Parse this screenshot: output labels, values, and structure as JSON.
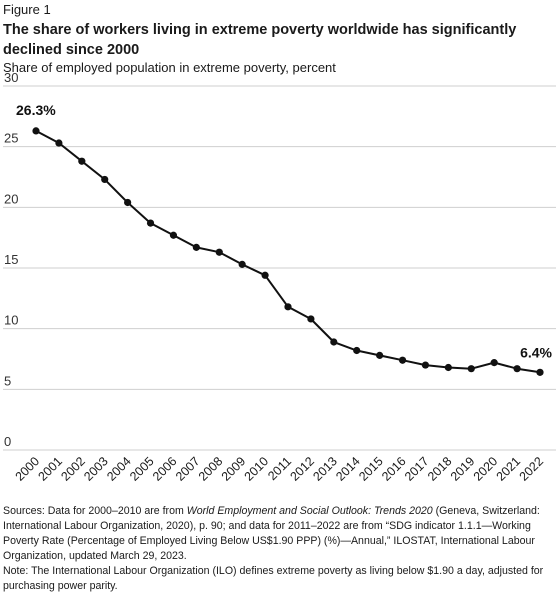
{
  "figure_label": "Figure 1",
  "title": "The share of workers living in extreme poverty worldwide has significantly declined since 2000",
  "subtitle": "Share of employed population in extreme poverty, percent",
  "chart_data": {
    "type": "line",
    "title": "The share of workers living in extreme poverty worldwide has significantly declined since 2000",
    "ylabel": "Share of employed population in extreme poverty, percent",
    "xlabel": "",
    "ylim": [
      0,
      30
    ],
    "y_ticks": [
      0,
      5,
      10,
      15,
      20,
      25,
      30
    ],
    "x": [
      "2000",
      "2001",
      "2002",
      "2003",
      "2004",
      "2005",
      "2006",
      "2007",
      "2008",
      "2009",
      "2010",
      "2011",
      "2012",
      "2013",
      "2014",
      "2015",
      "2016",
      "2017",
      "2018",
      "2019",
      "2020",
      "2021",
      "2022"
    ],
    "series": [
      {
        "values": [
          26.3,
          25.3,
          23.8,
          22.3,
          20.4,
          18.7,
          17.7,
          16.7,
          16.3,
          15.3,
          14.4,
          11.8,
          10.8,
          8.9,
          8.2,
          7.8,
          7.4,
          7.0,
          6.8,
          6.7,
          7.2,
          6.7,
          6.4
        ],
        "color": "#111111"
      }
    ],
    "annotations": [
      {
        "index": 0,
        "text": "26.3%"
      },
      {
        "index": 22,
        "text": "6.4%"
      }
    ],
    "grid": "horizontal",
    "grid_color": "#cfcfcf",
    "line_color": "#111111"
  },
  "footer": {
    "sources_html": "Sources: Data for 2000–2010 are from <i>World Employment and Social Outlook: Trends 2020</i> (Geneva, Switzerland: International Labour Organization, 2020), p. 90; and data for 2011–2022 are from “SDG indicator 1.1.1—Working Poverty Rate (Percentage of Employed Living Below US$1.90 PPP) (%)—Annual,” ILOSTAT, International Labour Organization, updated March 29, 2023.",
    "note": "Note: The International Labour Organization (ILO) defines extreme poverty as living below $1.90 a day, adjusted for purchasing power parity."
  }
}
